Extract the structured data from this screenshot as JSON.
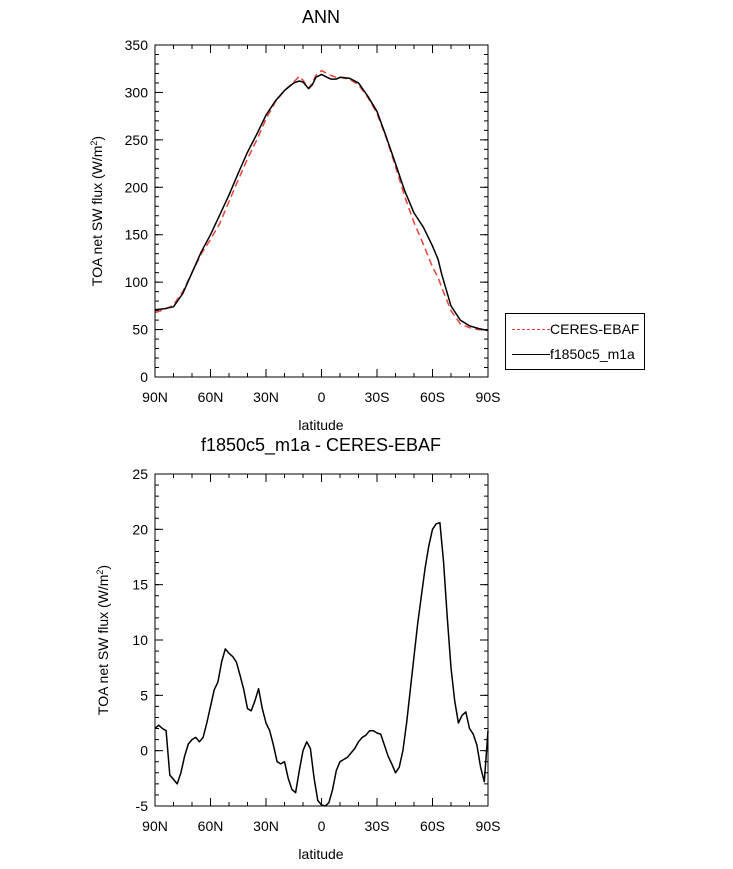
{
  "chart_data": [
    {
      "type": "line",
      "title": "ANN",
      "xlabel": "latitude",
      "ylabel": "TOA net SW flux (W/m²)",
      "ylabel_main": "TOA net SW flux (W/m",
      "ylabel_sup": "2",
      "ylabel_end": ")",
      "x_tick_labels": [
        "90N",
        "60N",
        "30N",
        "0",
        "30S",
        "60S",
        "90S"
      ],
      "x_ticks": [
        90,
        60,
        30,
        0,
        -30,
        -60,
        -90
      ],
      "xlim": [
        90,
        -90
      ],
      "ylim": [
        0,
        350
      ],
      "y_ticks": [
        0,
        50,
        100,
        150,
        200,
        250,
        300,
        350
      ],
      "series": [
        {
          "name": "CERES-EBAF",
          "color": "#e8423a",
          "dash": "dashed",
          "x": [
            90,
            85,
            80,
            75,
            70,
            65,
            60,
            55,
            50,
            45,
            40,
            35,
            30,
            25,
            20,
            15,
            12,
            10,
            7,
            5,
            3,
            0,
            -3,
            -5,
            -8,
            -10,
            -15,
            -20,
            -25,
            -30,
            -35,
            -40,
            -45,
            -50,
            -55,
            -60,
            -63,
            -65,
            -70,
            -75,
            -80,
            -85,
            -90
          ],
          "y": [
            68,
            71,
            76,
            90,
            110,
            130,
            145,
            162,
            185,
            208,
            230,
            250,
            272,
            290,
            302,
            311,
            317,
            313,
            304,
            310,
            318,
            323,
            320,
            318,
            316,
            316,
            314,
            308,
            295,
            278,
            252,
            222,
            190,
            163,
            140,
            116,
            105,
            94,
            70,
            56,
            52,
            50,
            49
          ]
        },
        {
          "name": "f1850c5_m1a",
          "color": "#000000",
          "dash": "solid",
          "x": [
            90,
            85,
            80,
            75,
            70,
            65,
            60,
            55,
            50,
            45,
            40,
            35,
            30,
            25,
            20,
            15,
            12,
            10,
            7,
            5,
            3,
            0,
            -3,
            -5,
            -8,
            -10,
            -15,
            -20,
            -25,
            -30,
            -35,
            -40,
            -45,
            -50,
            -55,
            -60,
            -63,
            -65,
            -70,
            -75,
            -80,
            -85,
            -90
          ],
          "y": [
            71,
            72,
            74,
            88,
            110,
            132,
            150,
            171,
            192,
            215,
            237,
            256,
            276,
            291,
            302,
            310,
            312,
            311,
            304,
            308,
            316,
            319,
            316,
            314,
            314,
            316,
            315,
            310,
            296,
            280,
            253,
            225,
            196,
            173,
            158,
            138,
            124,
            108,
            75,
            60,
            54,
            51,
            49
          ]
        }
      ],
      "legend": {
        "placement": "right",
        "entries": [
          "CERES-EBAF",
          "f1850c5_m1a"
        ]
      }
    },
    {
      "type": "line",
      "title": "f1850c5_m1a - CERES-EBAF",
      "xlabel": "latitude",
      "ylabel": "TOA net SW flux (W/m²)",
      "ylabel_main": "TOA net SW flux (W/m",
      "ylabel_sup": "2",
      "ylabel_end": ")",
      "x_tick_labels": [
        "90N",
        "60N",
        "30N",
        "0",
        "30S",
        "60S",
        "90S"
      ],
      "x_ticks": [
        90,
        60,
        30,
        0,
        -30,
        -60,
        -90
      ],
      "xlim": [
        90,
        -90
      ],
      "ylim": [
        -5,
        25
      ],
      "y_ticks": [
        -5,
        0,
        5,
        10,
        15,
        20,
        25
      ],
      "series": [
        {
          "name": "f1850c5_m1a",
          "color": "#000000",
          "dash": "solid",
          "x": [
            90,
            88,
            86,
            84,
            82,
            80,
            78,
            76,
            74,
            72,
            70,
            68,
            66,
            64,
            62,
            60,
            58,
            56,
            54,
            52,
            50,
            48,
            46,
            44,
            42,
            40,
            38,
            36,
            34,
            32,
            30,
            28,
            26,
            24,
            22,
            20,
            18,
            16,
            14,
            12,
            10,
            8,
            6,
            4,
            2,
            0,
            -2,
            -4,
            -6,
            -8,
            -10,
            -12,
            -14,
            -16,
            -18,
            -20,
            -22,
            -24,
            -26,
            -28,
            -30,
            -32,
            -34,
            -36,
            -38,
            -40,
            -42,
            -44,
            -46,
            -48,
            -50,
            -52,
            -54,
            -56,
            -58,
            -60,
            -62,
            -64,
            -66,
            -68,
            -70,
            -72,
            -74,
            -76,
            -78,
            -80,
            -82,
            -84,
            -86,
            -88,
            -90
          ],
          "y": [
            2.0,
            2.3,
            2.0,
            1.8,
            -2.2,
            -2.6,
            -3.0,
            -2.0,
            -0.5,
            0.6,
            1.0,
            1.2,
            0.8,
            1.2,
            2.5,
            4.0,
            5.5,
            6.2,
            8.0,
            9.2,
            8.8,
            8.5,
            8.0,
            6.8,
            5.5,
            3.8,
            3.6,
            4.5,
            5.6,
            3.8,
            2.5,
            1.8,
            0.5,
            -1.0,
            -1.2,
            -1.0,
            -2.5,
            -3.5,
            -3.8,
            -1.8,
            0.0,
            0.8,
            0.2,
            -2.5,
            -4.5,
            -4.9,
            -5.0,
            -4.7,
            -3.5,
            -1.8,
            -1.0,
            -0.8,
            -0.6,
            -0.2,
            0.2,
            0.8,
            1.2,
            1.4,
            1.8,
            1.8,
            1.6,
            1.5,
            0.5,
            -0.5,
            -1.2,
            -2.0,
            -1.5,
            0.0,
            2.5,
            5.5,
            8.5,
            11.5,
            14.0,
            16.5,
            18.5,
            20.0,
            20.5,
            20.6,
            17.0,
            12.0,
            7.5,
            4.5,
            2.5,
            3.2,
            3.5,
            2.0,
            1.5,
            0.5,
            -1.5,
            -2.8,
            1.8
          ]
        }
      ]
    }
  ]
}
